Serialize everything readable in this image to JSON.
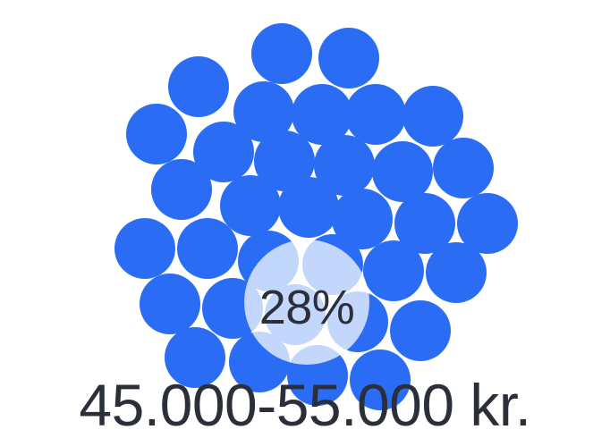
{
  "widget": {
    "dot_color": "#2a6df4",
    "highlight_color": "#ffffff",
    "percentage": "28%",
    "percentage_value": 0.28,
    "range_label": "45.000-55.000 kr."
  }
}
